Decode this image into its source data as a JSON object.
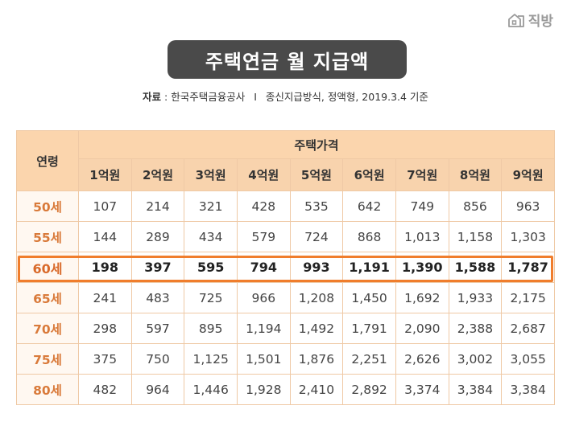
{
  "logo": {
    "text": "직방",
    "icon": "home-building-icon"
  },
  "title": "주택연금 월 지급액",
  "source": {
    "label": "자료",
    "text": ": 한국주택금융공사",
    "separator": "I",
    "note": "종신지급방식, 정액형, 2019.3.4 기준"
  },
  "table": {
    "age_header": "연령",
    "group_header": "주택가격",
    "price_columns": [
      "1억원",
      "2억원",
      "3억원",
      "4억원",
      "5억원",
      "6억원",
      "7억원",
      "8억원",
      "9억원"
    ],
    "rows": [
      {
        "age": "50세",
        "values": [
          "107",
          "214",
          "321",
          "428",
          "535",
          "642",
          "749",
          "856",
          "963"
        ]
      },
      {
        "age": "55세",
        "values": [
          "144",
          "289",
          "434",
          "579",
          "724",
          "868",
          "1,013",
          "1,158",
          "1,303"
        ]
      },
      {
        "age": "60세",
        "values": [
          "198",
          "397",
          "595",
          "794",
          "993",
          "1,191",
          "1,390",
          "1,588",
          "1,787"
        ]
      },
      {
        "age": "65세",
        "values": [
          "241",
          "483",
          "725",
          "966",
          "1,208",
          "1,450",
          "1,692",
          "1,933",
          "2,175"
        ]
      },
      {
        "age": "70세",
        "values": [
          "298",
          "597",
          "895",
          "1,194",
          "1,492",
          "1,791",
          "2,090",
          "2,388",
          "2,687"
        ]
      },
      {
        "age": "75세",
        "values": [
          "375",
          "750",
          "1,125",
          "1,501",
          "1,876",
          "2,251",
          "2,626",
          "3,002",
          "3,055"
        ]
      },
      {
        "age": "80세",
        "values": [
          "482",
          "964",
          "1,446",
          "1,928",
          "2,410",
          "2,892",
          "3,374",
          "3,384",
          "3,384"
        ]
      }
    ],
    "highlighted_row_age": "60세"
  },
  "colors": {
    "header_bg": "#fbd5ad",
    "border": "#efc9a5",
    "highlight": "#f07d2c",
    "title_bg": "#4a4a4a"
  }
}
